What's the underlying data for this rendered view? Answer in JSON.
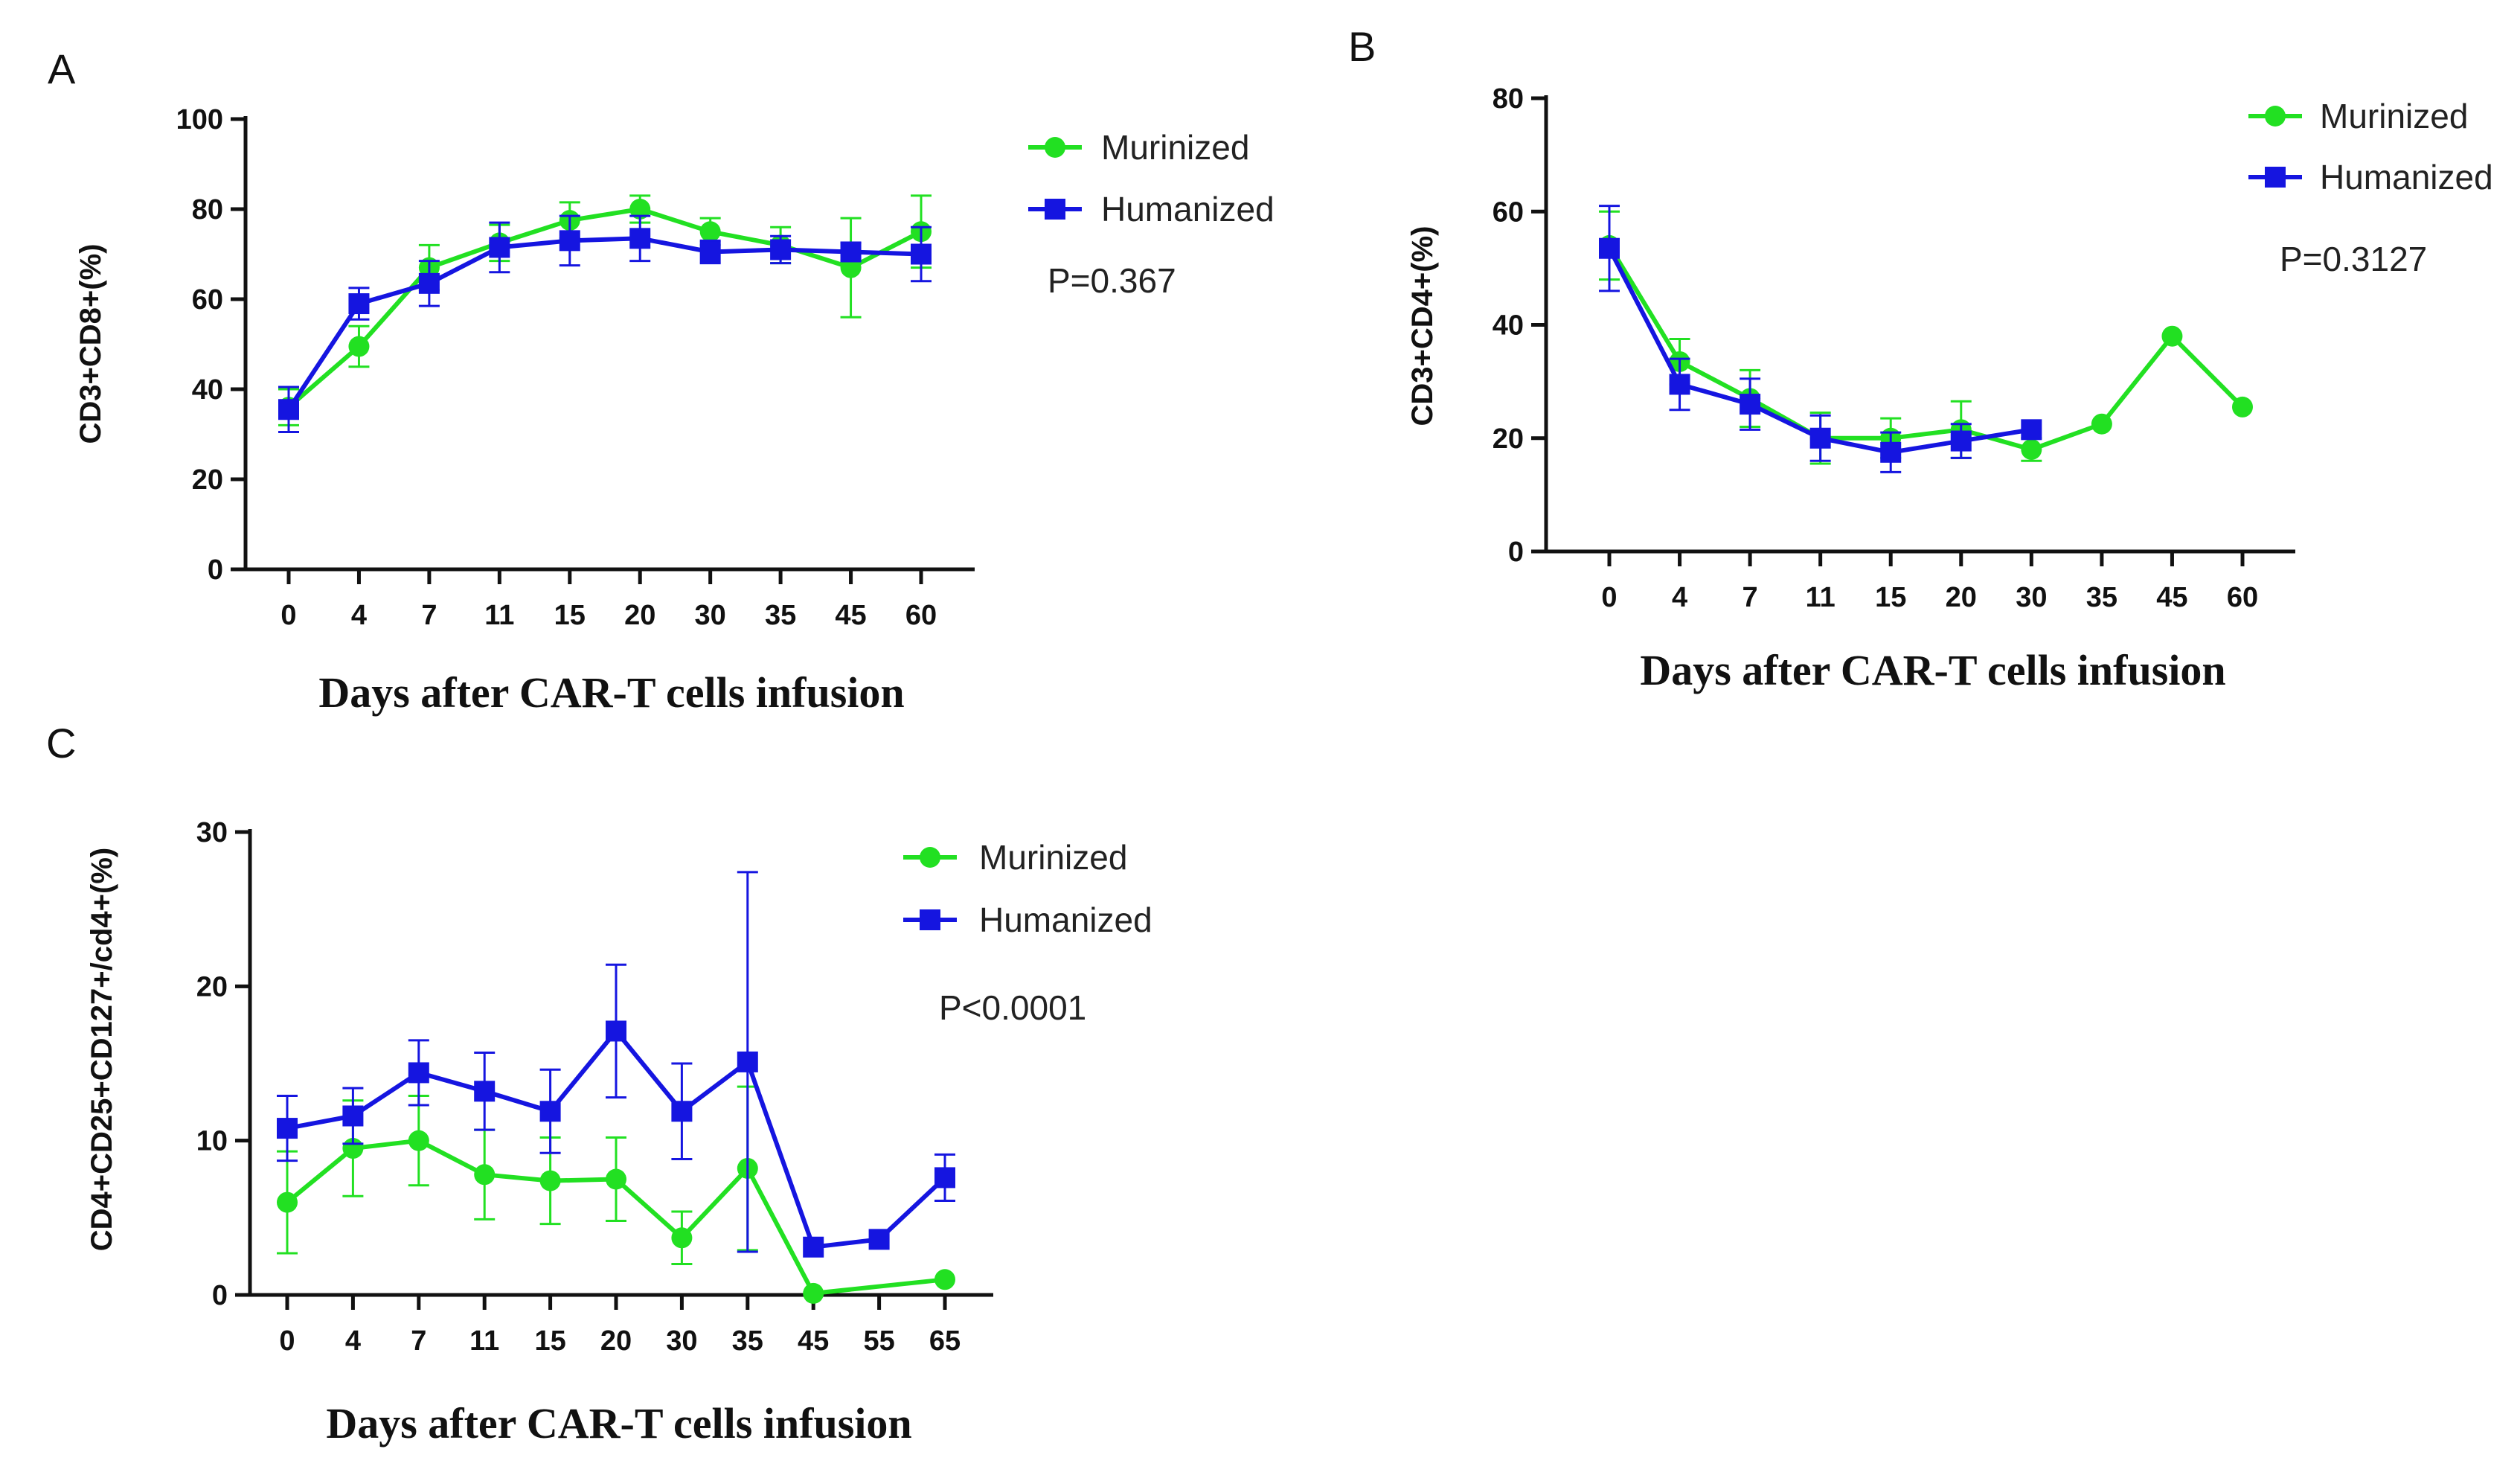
{
  "colors": {
    "murinized": "#22e022",
    "humanized": "#1515e0",
    "axis": "#111111"
  },
  "chart_data": [
    {
      "panel": "A",
      "type": "line",
      "categories": [
        "0",
        "4",
        "7",
        "11",
        "15",
        "20",
        "30",
        "35",
        "45",
        "60"
      ],
      "xlabel": "Days after CAR-T cells infusion",
      "ylabel": "CD3+CD8+(%)",
      "ylim": [
        0,
        100
      ],
      "yticks": [
        0,
        20,
        40,
        60,
        80,
        100
      ],
      "pvalue": "P=0.367",
      "legend_position": "top-right",
      "series": [
        {
          "name": "Murinized",
          "marker": "circle",
          "colorKey": "murinized",
          "values": [
            36,
            49.5,
            67,
            72.5,
            77.5,
            80,
            75,
            72,
            67,
            75
          ],
          "errors": [
            4,
            4.5,
            5,
            4,
            4,
            3,
            3,
            4,
            11,
            8
          ]
        },
        {
          "name": "Humanized",
          "marker": "square",
          "colorKey": "humanized",
          "values": [
            35.5,
            59,
            63.5,
            71.5,
            73,
            73.5,
            70.5,
            71,
            70.5,
            70
          ],
          "errors": [
            5,
            3.5,
            5,
            5.5,
            5.5,
            5,
            2.5,
            3,
            2,
            6
          ]
        }
      ]
    },
    {
      "panel": "B",
      "type": "line",
      "categories": [
        "0",
        "4",
        "7",
        "11",
        "15",
        "20",
        "30",
        "35",
        "45",
        "60"
      ],
      "xlabel": "Days after CAR-T cells infusion",
      "ylabel": "CD3+CD4+(%)",
      "ylim": [
        0,
        80
      ],
      "yticks": [
        0,
        20,
        40,
        60,
        80
      ],
      "pvalue": "P=0.3127",
      "legend_position": "top-right",
      "series": [
        {
          "name": "Murinized",
          "marker": "circle",
          "colorKey": "murinized",
          "values": [
            54,
            33.5,
            27,
            20,
            20,
            21.5,
            18,
            22.5,
            38,
            25.5
          ],
          "errors": [
            6,
            4,
            5,
            4.5,
            3.5,
            5,
            2,
            0,
            0,
            0
          ]
        },
        {
          "name": "Humanized",
          "marker": "square",
          "colorKey": "humanized",
          "values": [
            53.5,
            29.5,
            26,
            20,
            17.5,
            19.5,
            21.5,
            null,
            null,
            null
          ],
          "errors": [
            7.5,
            4.5,
            4.5,
            4,
            3.5,
            3,
            0,
            0,
            0,
            0
          ]
        }
      ]
    },
    {
      "panel": "C",
      "type": "line",
      "categories": [
        "0",
        "4",
        "7",
        "11",
        "15",
        "20",
        "30",
        "35",
        "45",
        "55",
        "65"
      ],
      "xlabel": "Days after CAR-T cells infusion",
      "ylabel": "CD4+CD25+CD127+/cd4+(%)",
      "ylim": [
        0,
        30
      ],
      "yticks": [
        0,
        10,
        20,
        30
      ],
      "pvalue": "P<0.0001",
      "legend_position": "top-right",
      "series": [
        {
          "name": "Murinized",
          "marker": "circle",
          "colorKey": "murinized",
          "values": [
            6,
            9.5,
            10,
            7.8,
            7.4,
            7.5,
            3.7,
            8.2,
            0.1,
            null,
            1
          ],
          "errors": [
            3.3,
            3.1,
            2.9,
            2.9,
            2.8,
            2.7,
            1.7,
            5.3,
            0,
            0,
            0
          ]
        },
        {
          "name": "Humanized",
          "marker": "square",
          "colorKey": "humanized",
          "values": [
            10.8,
            11.6,
            14.4,
            13.2,
            11.9,
            17.1,
            11.9,
            15.1,
            3.1,
            3.6,
            7.6
          ],
          "errors": [
            2.1,
            1.8,
            2.1,
            2.5,
            2.7,
            4.3,
            3.1,
            12.3,
            0,
            0,
            1.5
          ]
        }
      ]
    }
  ]
}
